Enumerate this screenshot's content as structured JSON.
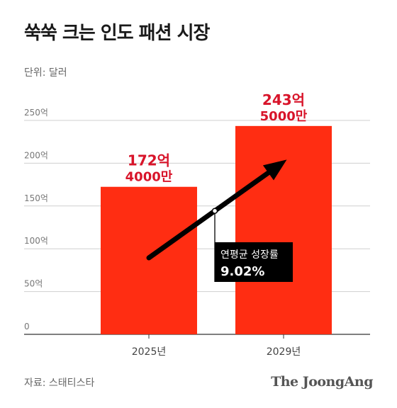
{
  "title": "쑥쑥 크는 인도 패션 시장",
  "unit_label": "단위: 달러",
  "source": "자료: 스태티스타",
  "logo": "The JoongAng",
  "colors": {
    "bar": "#ff2d12",
    "value_label": "#d8142a",
    "grid": "#cfcfcf",
    "arrow": "#000000"
  },
  "chart_data": {
    "type": "bar",
    "categories": [
      "2025년",
      "2029년"
    ],
    "values": [
      172.4,
      243.5
    ],
    "value_labels": [
      [
        "172억",
        "4000만"
      ],
      [
        "243억",
        "5000만"
      ]
    ],
    "ylim": [
      0,
      250
    ],
    "yticks": [
      0,
      50,
      100,
      150,
      200,
      250
    ],
    "ytick_labels": [
      "0",
      "50억",
      "100억",
      "150억",
      "200억",
      "250억"
    ],
    "grid": true,
    "annotation": {
      "label": "연평균 성장률",
      "value": "9.02%"
    }
  }
}
